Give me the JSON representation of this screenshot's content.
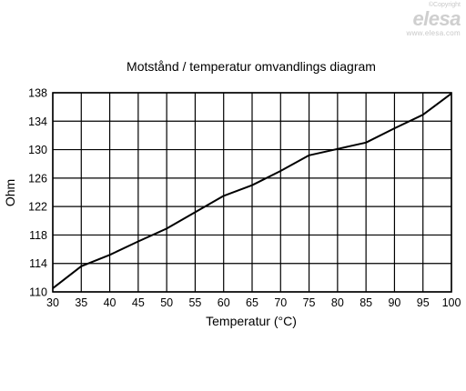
{
  "watermark": {
    "copyright": "©Copyright",
    "logo": "elesa",
    "url": "www.elesa.com"
  },
  "chart_data": {
    "type": "line",
    "title": "Motstånd / temperatur omvandlings diagram",
    "xlabel": "Temperatur (°C)",
    "ylabel": "Ohm",
    "xlim": [
      30,
      100
    ],
    "ylim": [
      110,
      138
    ],
    "xticks": [
      30,
      35,
      40,
      45,
      50,
      55,
      60,
      65,
      70,
      75,
      80,
      85,
      90,
      95,
      100
    ],
    "yticks": [
      110,
      114,
      118,
      122,
      126,
      130,
      134,
      138
    ],
    "grid": true,
    "line_color": "#000000",
    "series": [
      {
        "x": [
          30,
          35,
          40,
          45,
          50,
          55,
          60,
          65,
          70,
          75,
          80,
          85,
          90,
          95,
          100
        ],
        "y": [
          110.5,
          113.6,
          115.2,
          117.1,
          118.9,
          121.2,
          123.5,
          125.0,
          127.0,
          129.2,
          130.1,
          131.0,
          133.0,
          134.9,
          137.9
        ]
      }
    ]
  }
}
